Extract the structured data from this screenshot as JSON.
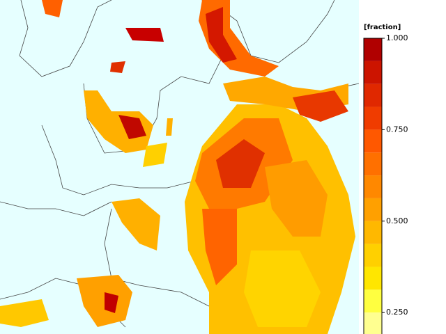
{
  "colorbar": {
    "label": "[fraction]",
    "levels": [
      0.1875,
      0.25,
      0.3125,
      0.375,
      0.4375,
      0.5,
      0.5625,
      0.625,
      0.6875,
      0.75,
      0.8125,
      0.875,
      0.9375,
      1.0
    ],
    "colors": [
      "#ffff90",
      "#ffff40",
      "#ffe600",
      "#ffd000",
      "#ffb800",
      "#ffa000",
      "#ff8800",
      "#ff7000",
      "#ff5800",
      "#f03c00",
      "#e02800",
      "#cc1400",
      "#b00000"
    ],
    "lim": [
      0.1875,
      1.0
    ],
    "ticks": [
      {
        "value": 1.0,
        "label": "1.000"
      },
      {
        "value": 0.75,
        "label": "0.750"
      },
      {
        "value": 0.5,
        "label": "0.500"
      },
      {
        "value": 0.25,
        "label": "0.250"
      }
    ]
  }
}
